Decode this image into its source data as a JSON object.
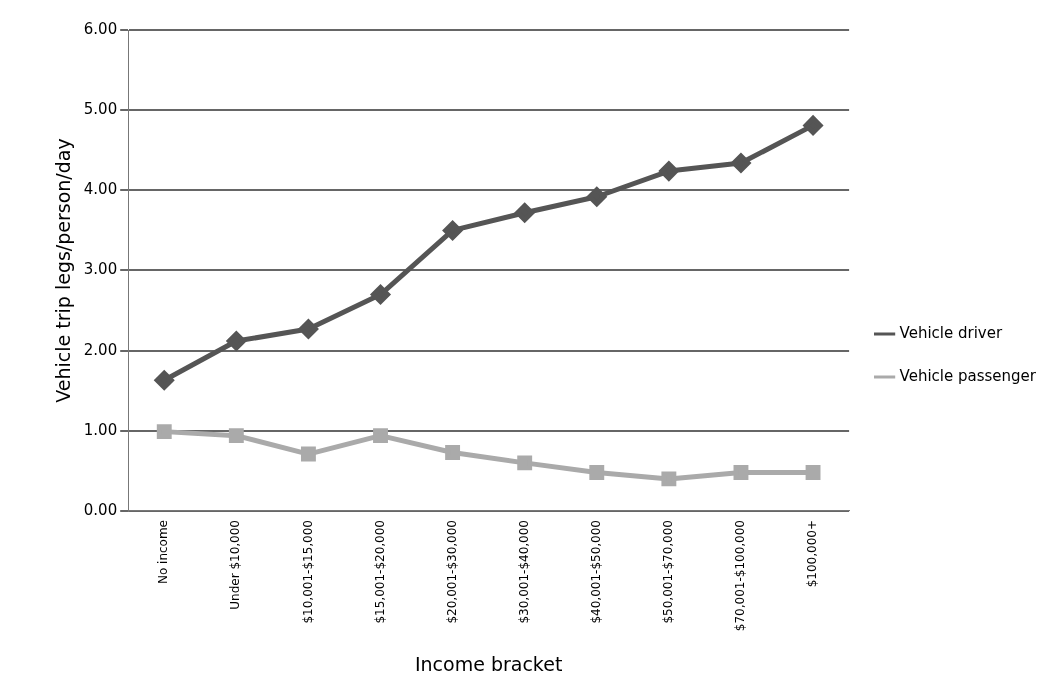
{
  "chart_data": {
    "type": "line",
    "xlabel": "Income bracket",
    "ylabel": "Vehicle trip legs/person/day",
    "categories": [
      "No income",
      "Under $10,000",
      "$10,001-$15,000",
      "$15,001-$20,000",
      "$20,001-$30,000",
      "$30,001-$40,000",
      "$40,001-$50,000",
      "$50,001-$70,000",
      "$70,001-$100,000",
      "$100,000+"
    ],
    "series": [
      {
        "name": "Vehicle driver",
        "color": "#555555",
        "marker": "diamond",
        "values": [
          1.63,
          2.12,
          2.27,
          2.7,
          3.5,
          3.72,
          3.92,
          4.24,
          4.34,
          4.81
        ]
      },
      {
        "name": "Vehicle passenger",
        "color": "#aaaaaa",
        "marker": "square",
        "values": [
          0.99,
          0.94,
          0.71,
          0.94,
          0.73,
          0.6,
          0.48,
          0.4,
          0.48,
          0.48
        ]
      }
    ],
    "ylim": [
      0,
      6
    ],
    "yticks": [
      {
        "value": 0,
        "label": "0.00"
      },
      {
        "value": 1,
        "label": "1.00"
      },
      {
        "value": 2,
        "label": "2.00"
      },
      {
        "value": 3,
        "label": "3.00"
      },
      {
        "value": 4,
        "label": "4.00"
      },
      {
        "value": 5,
        "label": "5.00"
      },
      {
        "value": 6,
        "label": "6.00"
      }
    ],
    "grid": "y",
    "legend": "right",
    "line_style": "solid"
  }
}
